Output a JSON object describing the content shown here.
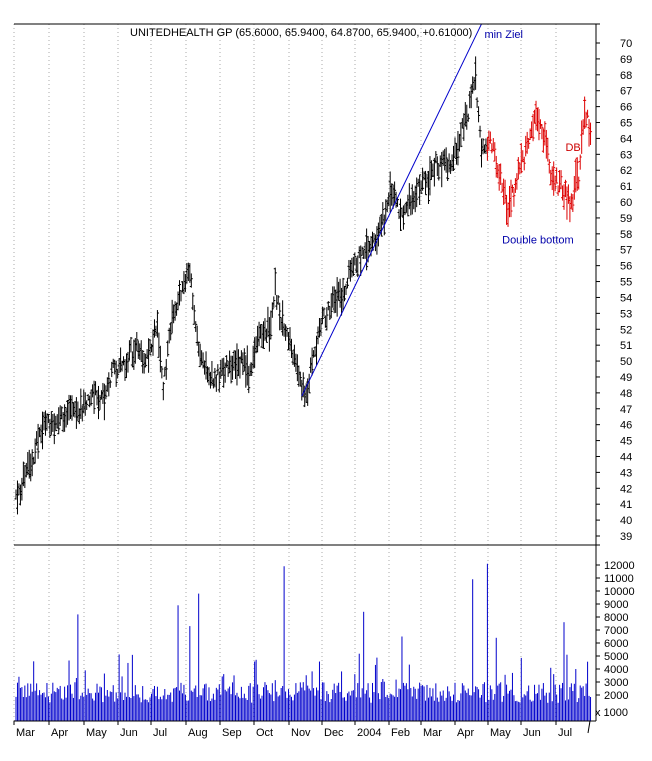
{
  "chart_data": {
    "type": "ohlc",
    "title": "UNITEDHEALTH GP (65.6000, 65.9400, 64.8700, 65.9400, +0.61000)",
    "price_axis": {
      "min": 39,
      "max": 70,
      "ticks": [
        39,
        40,
        41,
        42,
        43,
        44,
        45,
        46,
        47,
        48,
        49,
        50,
        51,
        52,
        53,
        54,
        55,
        56,
        57,
        58,
        59,
        60,
        61,
        62,
        63,
        64,
        65,
        66,
        67,
        68,
        69,
        70
      ]
    },
    "volume_axis": {
      "min": 0,
      "max": 12500,
      "ticks": [
        2000,
        3000,
        4000,
        5000,
        6000,
        7000,
        8000,
        9000,
        10000,
        11000,
        12000
      ],
      "unit_label": "x 1000"
    },
    "months": [
      "Mar",
      "Apr",
      "May",
      "Jun",
      "Jul",
      "Aug",
      "Sep",
      "Oct",
      "Nov",
      "Dec",
      "2004",
      "Feb",
      "Mar",
      "Apr",
      "May",
      "Jun",
      "Jul"
    ],
    "price_anchors": [
      [
        0,
        41.6
      ],
      [
        8,
        43.0
      ],
      [
        15,
        45.0
      ],
      [
        22,
        46.2
      ],
      [
        30,
        46.5
      ],
      [
        38,
        46.8
      ],
      [
        45,
        46.8
      ],
      [
        52,
        48.0
      ],
      [
        58,
        47.5
      ],
      [
        66,
        49.5
      ],
      [
        74,
        50.0
      ],
      [
        82,
        51.0
      ],
      [
        88,
        50.0
      ],
      [
        96,
        52.2
      ],
      [
        100,
        48.5
      ],
      [
        106,
        52.5
      ],
      [
        112,
        54.0
      ],
      [
        118,
        55.5
      ],
      [
        122,
        52.0
      ],
      [
        128,
        49.5
      ],
      [
        134,
        49.0
      ],
      [
        142,
        49.5
      ],
      [
        150,
        50.2
      ],
      [
        158,
        49.3
      ],
      [
        166,
        51.5
      ],
      [
        172,
        52.0
      ],
      [
        176,
        54.5
      ],
      [
        182,
        52.0
      ],
      [
        188,
        50.5
      ],
      [
        194,
        48.0
      ],
      [
        198,
        48.3
      ],
      [
        206,
        52.0
      ],
      [
        214,
        53.5
      ],
      [
        222,
        54.5
      ],
      [
        230,
        56.0
      ],
      [
        238,
        57.0
      ],
      [
        246,
        58.0
      ],
      [
        254,
        60.5
      ],
      [
        262,
        59.0
      ],
      [
        270,
        60.5
      ],
      [
        278,
        61.5
      ],
      [
        286,
        62.5
      ],
      [
        294,
        62.5
      ],
      [
        300,
        63.5
      ],
      [
        308,
        66.0
      ],
      [
        312,
        68.0
      ],
      [
        316,
        63.0
      ],
      [
        322,
        64.0
      ],
      [
        328,
        62.0
      ],
      [
        334,
        59.5
      ],
      [
        340,
        61.5
      ],
      [
        346,
        63.0
      ],
      [
        352,
        65.5
      ],
      [
        358,
        64.5
      ],
      [
        364,
        61.5
      ],
      [
        370,
        61.0
      ],
      [
        376,
        60.0
      ],
      [
        382,
        61.5
      ],
      [
        386,
        65.8
      ],
      [
        390,
        64.5
      ]
    ],
    "red_from_index": 320,
    "trendline": {
      "start": {
        "index": 194,
        "price": 47.8
      },
      "end": {
        "index": 316,
        "price": 71.2
      }
    },
    "annotations": [
      {
        "text": "min Ziel",
        "index": 318,
        "price": 70.3,
        "color": "#0000aa"
      },
      {
        "text": "Double bottom",
        "index": 330,
        "price": 57.4,
        "color": "#0000aa"
      },
      {
        "text": "DB",
        "index": 373,
        "price": 63.2,
        "color": "#cc0000"
      }
    ],
    "volume_seed": 7,
    "volume_spikes": [
      {
        "index": 42,
        "value": 8200
      },
      {
        "index": 110,
        "value": 8900
      },
      {
        "index": 124,
        "value": 9800
      },
      {
        "index": 118,
        "value": 7300
      },
      {
        "index": 182,
        "value": 11900
      },
      {
        "index": 236,
        "value": 8400
      },
      {
        "index": 262,
        "value": 6500
      },
      {
        "index": 310,
        "value": 10900
      },
      {
        "index": 320,
        "value": 12100
      },
      {
        "index": 326,
        "value": 6400
      },
      {
        "index": 372,
        "value": 7600
      },
      {
        "index": 374,
        "value": 5100
      }
    ],
    "grid": true,
    "colors": {
      "bars": "#000000",
      "red_bars": "#dd0000",
      "volume": "#0000cc",
      "trendline": "#0000cc",
      "grid": "#aaaaaa"
    }
  }
}
